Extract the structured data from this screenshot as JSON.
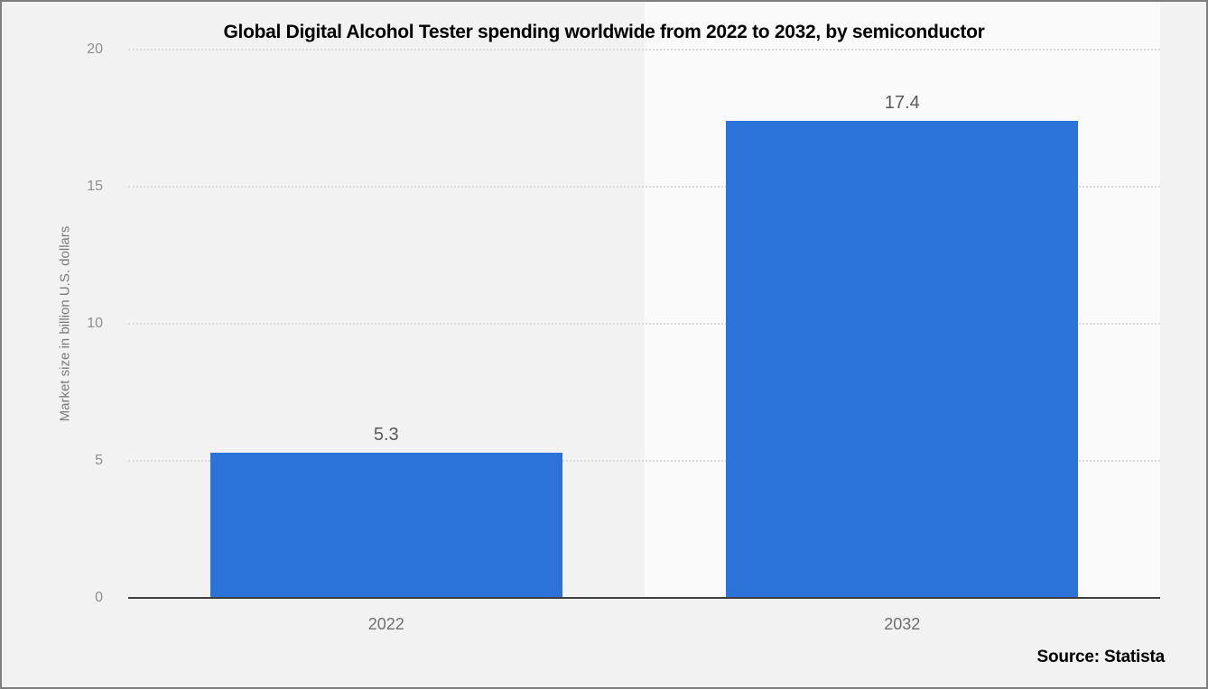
{
  "chart_data": {
    "type": "bar",
    "title": "Global Digital Alcohol Tester spending worldwide from 2022 to 2032, by semiconductor",
    "categories": [
      "2022",
      "2032"
    ],
    "values": [
      5.3,
      17.4
    ],
    "value_labels": [
      "5.3",
      "17.4"
    ],
    "xlabel": "",
    "ylabel": "Market size in billion U.S. dollars",
    "ylim": [
      0,
      20
    ],
    "yticks": [
      0,
      5,
      10,
      15,
      20
    ],
    "grid": "horizontal-dotted",
    "legend": "none",
    "bar_color": "#2b73d8",
    "band_colors": [
      "#f2f2f2",
      "#fafafa"
    ],
    "background_color": "#f2f2f2"
  },
  "footer": {
    "source_label": "Source: Statista"
  }
}
